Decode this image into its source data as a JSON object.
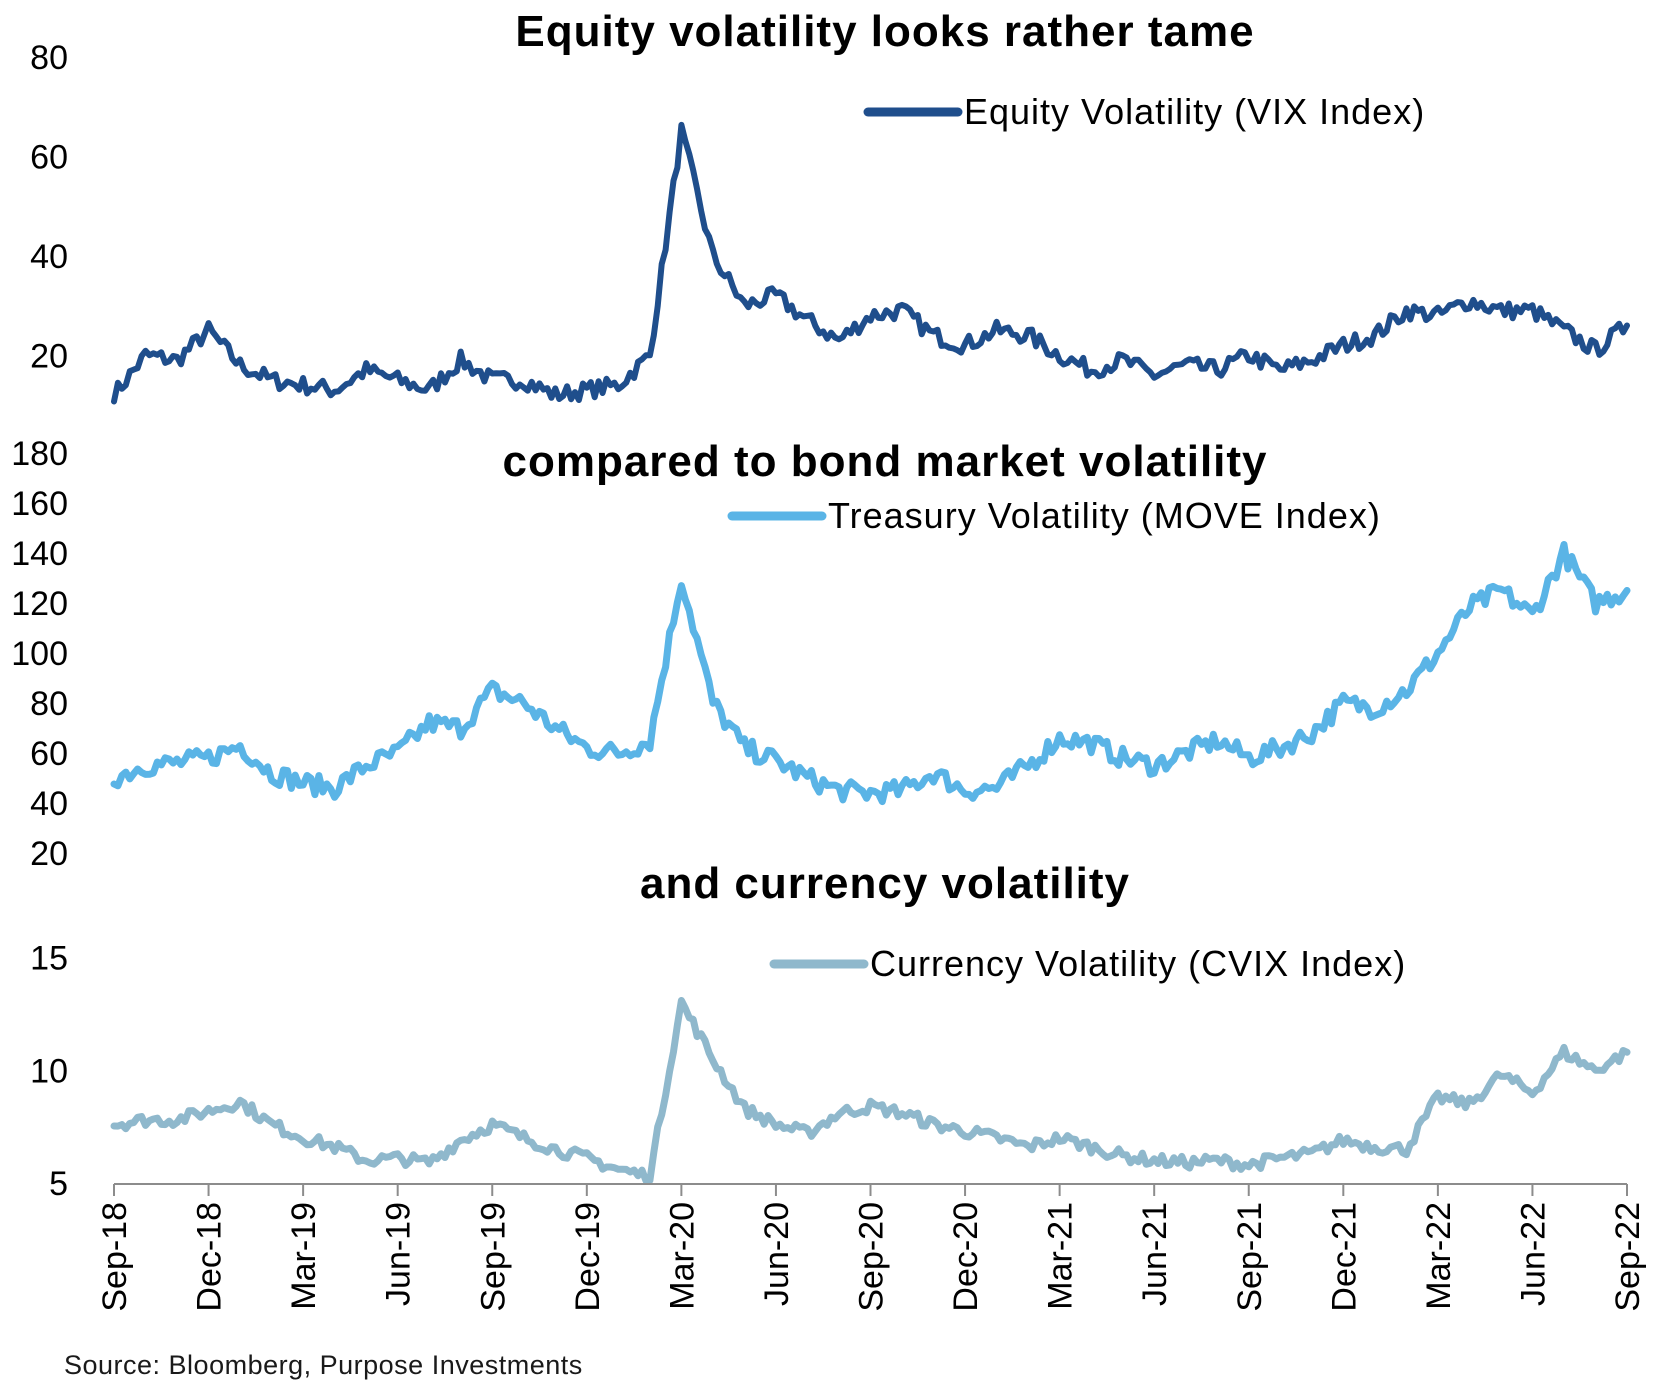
{
  "source": "Source: Bloomberg, Purpose Investments",
  "x_axis": {
    "tick_labels": [
      "Sep-18",
      "Dec-18",
      "Mar-19",
      "Jun-19",
      "Sep-19",
      "Dec-19",
      "Mar-20",
      "Jun-20",
      "Sep-20",
      "Dec-20",
      "Mar-21",
      "Jun-21",
      "Sep-21",
      "Dec-21",
      "Mar-22",
      "Jun-22",
      "Sep-22"
    ]
  },
  "chart_data": [
    {
      "type": "line",
      "title": "Equity volatility looks rather tame",
      "ylim": [
        10,
        80
      ],
      "yticks": [
        20,
        40,
        60,
        80
      ],
      "legend_position": "top-right",
      "series": [
        {
          "name": "Equity Volatility (VIX Index)",
          "color": "#1f4e8c",
          "points": [
            [
              "Sep-18",
              12
            ],
            [
              "Oct-18",
              20
            ],
            [
              "Nov-18",
              19
            ],
            [
              "Dec-18",
              25
            ],
            [
              "Jan-19",
              18
            ],
            [
              "Feb-19",
              15
            ],
            [
              "Mar-19",
              14
            ],
            [
              "Apr-19",
              13
            ],
            [
              "May-19",
              17
            ],
            [
              "Jun-19",
              15
            ],
            [
              "Jul-19",
              13
            ],
            [
              "Aug-19",
              19
            ],
            [
              "Sep-19",
              15
            ],
            [
              "Oct-19",
              15
            ],
            [
              "Nov-19",
              12
            ],
            [
              "Dec-19",
              13
            ],
            [
              "Jan-20",
              14
            ],
            [
              "Feb-20",
              20
            ],
            [
              "Mar-20",
              65
            ],
            [
              "Apr-20",
              40
            ],
            [
              "May-20",
              30
            ],
            [
              "Jun-20",
              32
            ],
            [
              "Jul-20",
              27
            ],
            [
              "Aug-20",
              23
            ],
            [
              "Sep-20",
              28
            ],
            [
              "Oct-20",
              29
            ],
            [
              "Nov-20",
              24
            ],
            [
              "Dec-20",
              22
            ],
            [
              "Jan-21",
              25
            ],
            [
              "Feb-21",
              24
            ],
            [
              "Mar-21",
              20
            ],
            [
              "Apr-21",
              17
            ],
            [
              "May-21",
              19
            ],
            [
              "Jun-21",
              16
            ],
            [
              "Jul-21",
              18
            ],
            [
              "Aug-21",
              17
            ],
            [
              "Sep-21",
              20
            ],
            [
              "Oct-21",
              17
            ],
            [
              "Nov-21",
              19
            ],
            [
              "Dec-21",
              22
            ],
            [
              "Jan-22",
              24
            ],
            [
              "Feb-22",
              29
            ],
            [
              "Mar-22",
              28
            ],
            [
              "Apr-22",
              31
            ],
            [
              "May-22",
              29
            ],
            [
              "Jun-22",
              29
            ],
            [
              "Jul-22",
              25
            ],
            [
              "Aug-22",
              21
            ],
            [
              "Sep-22",
              26
            ]
          ]
        }
      ]
    },
    {
      "type": "line",
      "title": "compared to bond market volatility",
      "ylim": [
        20,
        180
      ],
      "yticks": [
        20,
        40,
        60,
        80,
        100,
        120,
        140,
        160,
        180
      ],
      "legend_position": "top-right",
      "series": [
        {
          "name": "Treasury Volatility (MOVE Index)",
          "color": "#5ab4e6",
          "points": [
            [
              "Sep-18",
              50
            ],
            [
              "Oct-18",
              55
            ],
            [
              "Nov-18",
              56
            ],
            [
              "Dec-18",
              58
            ],
            [
              "Jan-19",
              63
            ],
            [
              "Feb-19",
              52
            ],
            [
              "Mar-19",
              48
            ],
            [
              "Apr-19",
              46
            ],
            [
              "May-19",
              55
            ],
            [
              "Jun-19",
              60
            ],
            [
              "Jul-19",
              72
            ],
            [
              "Aug-19",
              70
            ],
            [
              "Sep-19",
              85
            ],
            [
              "Oct-19",
              80
            ],
            [
              "Nov-19",
              70
            ],
            [
              "Dec-19",
              62
            ],
            [
              "Jan-20",
              60
            ],
            [
              "Feb-20",
              65
            ],
            [
              "Mar-20",
              130
            ],
            [
              "Apr-20",
              80
            ],
            [
              "May-20",
              62
            ],
            [
              "Jun-20",
              57
            ],
            [
              "Jul-20",
              50
            ],
            [
              "Aug-20",
              45
            ],
            [
              "Sep-20",
              44
            ],
            [
              "Oct-20",
              45
            ],
            [
              "Nov-20",
              52
            ],
            [
              "Dec-20",
              45
            ],
            [
              "Jan-21",
              46
            ],
            [
              "Feb-21",
              55
            ],
            [
              "Mar-21",
              66
            ],
            [
              "Apr-21",
              64
            ],
            [
              "May-21",
              58
            ],
            [
              "Jun-21",
              55
            ],
            [
              "Jul-21",
              60
            ],
            [
              "Aug-21",
              65
            ],
            [
              "Sep-21",
              58
            ],
            [
              "Oct-21",
              62
            ],
            [
              "Nov-21",
              68
            ],
            [
              "Dec-21",
              80
            ],
            [
              "Jan-22",
              78
            ],
            [
              "Feb-22",
              85
            ],
            [
              "Mar-22",
              100
            ],
            [
              "Apr-22",
              118
            ],
            [
              "May-22",
              125
            ],
            [
              "Jun-22",
              115
            ],
            [
              "Jul-22",
              140
            ],
            [
              "Aug-22",
              120
            ],
            [
              "Sep-22",
              125
            ]
          ]
        }
      ]
    },
    {
      "type": "line",
      "title": "and currency volatility",
      "ylim": [
        5,
        16
      ],
      "yticks": [
        5,
        10,
        15
      ],
      "legend_position": "top-right",
      "series": [
        {
          "name": "Currency Volatility (CVIX Index)",
          "color": "#8fb8cc",
          "points": [
            [
              "Sep-18",
              7.6
            ],
            [
              "Oct-18",
              7.8
            ],
            [
              "Nov-18",
              7.8
            ],
            [
              "Dec-18",
              8.2
            ],
            [
              "Jan-19",
              8.6
            ],
            [
              "Feb-19",
              7.6
            ],
            [
              "Mar-19",
              7.0
            ],
            [
              "Apr-19",
              6.6
            ],
            [
              "May-19",
              6.0
            ],
            [
              "Jun-19",
              6.1
            ],
            [
              "Jul-19",
              5.9
            ],
            [
              "Aug-19",
              6.9
            ],
            [
              "Sep-19",
              7.6
            ],
            [
              "Oct-19",
              7.0
            ],
            [
              "Nov-19",
              6.5
            ],
            [
              "Dec-19",
              6.1
            ],
            [
              "Jan-20",
              5.6
            ],
            [
              "Feb-20",
              5.3
            ],
            [
              "Mar-20",
              13.0
            ],
            [
              "Apr-20",
              10.5
            ],
            [
              "May-20",
              8.3
            ],
            [
              "Jun-20",
              7.6
            ],
            [
              "Jul-20",
              7.2
            ],
            [
              "Aug-20",
              8.1
            ],
            [
              "Sep-20",
              8.4
            ],
            [
              "Oct-20",
              8.1
            ],
            [
              "Nov-20",
              7.6
            ],
            [
              "Dec-20",
              7.3
            ],
            [
              "Jan-21",
              7.0
            ],
            [
              "Feb-21",
              6.6
            ],
            [
              "Mar-21",
              7.0
            ],
            [
              "Apr-21",
              6.6
            ],
            [
              "May-21",
              6.2
            ],
            [
              "Jun-21",
              6.0
            ],
            [
              "Jul-21",
              5.9
            ],
            [
              "Aug-21",
              6.0
            ],
            [
              "Sep-21",
              5.8
            ],
            [
              "Oct-21",
              6.1
            ],
            [
              "Nov-21",
              6.3
            ],
            [
              "Dec-21",
              6.9
            ],
            [
              "Jan-22",
              6.6
            ],
            [
              "Feb-22",
              6.5
            ],
            [
              "Mar-22",
              8.8
            ],
            [
              "Apr-22",
              8.5
            ],
            [
              "May-22",
              9.8
            ],
            [
              "Jun-22",
              9.0
            ],
            [
              "Jul-22",
              10.8
            ],
            [
              "Aug-22",
              10.0
            ],
            [
              "Sep-22",
              10.8
            ]
          ]
        }
      ]
    }
  ]
}
